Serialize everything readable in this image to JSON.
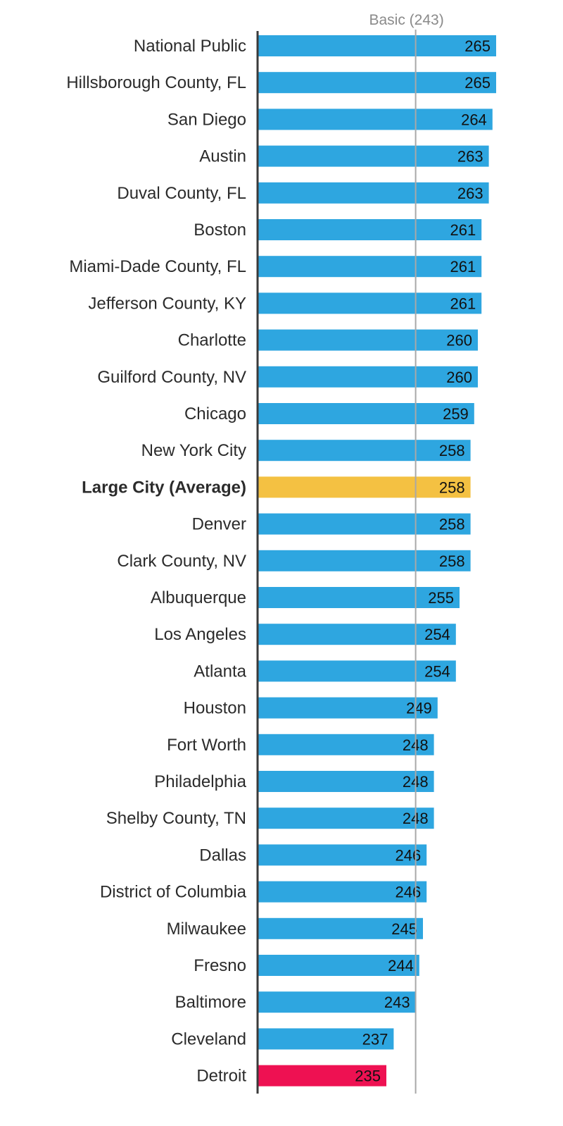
{
  "chart_data": {
    "type": "bar",
    "orientation": "horizontal",
    "title": "",
    "xlabel": "",
    "ylabel": "",
    "xlim": [
      200,
      270
    ],
    "grid": false,
    "reference_line": {
      "label": "Basic (243)",
      "value": 243
    },
    "categories": [
      "National Public",
      "Hillsborough County, FL",
      "San Diego",
      "Austin",
      "Duval County, FL",
      "Boston",
      "Miami-Dade County, FL",
      "Jefferson County, KY",
      "Charlotte",
      "Guilford County, NV",
      "Chicago",
      "New York City",
      "Large City (Average)",
      "Denver",
      "Clark County, NV",
      "Albuquerque",
      "Los Angeles",
      "Atlanta",
      "Houston",
      "Fort Worth",
      "Philadelphia",
      "Shelby County, TN",
      "Dallas",
      "District of Columbia",
      "Milwaukee",
      "Fresno",
      "Baltimore",
      "Cleveland",
      "Detroit"
    ],
    "values": [
      265,
      265,
      264,
      263,
      263,
      261,
      261,
      261,
      260,
      260,
      259,
      258,
      258,
      258,
      258,
      255,
      254,
      254,
      249,
      248,
      248,
      248,
      246,
      246,
      245,
      244,
      243,
      237,
      235
    ],
    "colors": {
      "default": "#2ea6e0",
      "Large City (Average)": "#f4c142",
      "Detroit": "#ee1152"
    },
    "emphasized_category": "Large City (Average)",
    "axis_color": "#3a3a3a",
    "reference_line_color": "#a8a8a8"
  }
}
